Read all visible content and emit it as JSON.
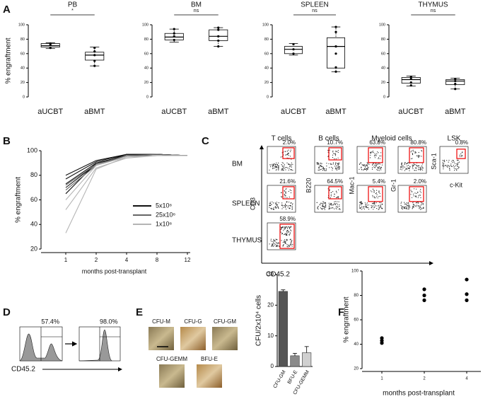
{
  "panel_labels": [
    "A",
    "B",
    "C",
    "D",
    "E",
    "F"
  ],
  "chart_data": [
    {
      "type": "box",
      "title": "PB",
      "annotation": "*",
      "ylabel": "% engraftment",
      "categories": [
        "aUCBT",
        "aBMT"
      ],
      "ylim": [
        0,
        100
      ],
      "yticks": [
        0,
        20,
        40,
        60,
        80,
        100
      ],
      "boxes": [
        {
          "min": 67,
          "q1": 69,
          "median": 71,
          "q3": 74,
          "max": 75,
          "points": [
            68,
            72,
            74
          ]
        },
        {
          "min": 43,
          "q1": 51,
          "median": 58,
          "q3": 62,
          "max": 69,
          "points": [
            43,
            50,
            58,
            63,
            68
          ]
        }
      ]
    },
    {
      "type": "box",
      "title": "BM",
      "annotation": "ns",
      "categories": [
        "aUCBT",
        "aBMT"
      ],
      "ylim": [
        0,
        100
      ],
      "yticks": [
        0,
        20,
        40,
        60,
        80,
        100
      ],
      "boxes": [
        {
          "min": 76,
          "q1": 79,
          "median": 83,
          "q3": 88,
          "max": 94,
          "points": [
            79,
            84,
            88,
            94
          ]
        },
        {
          "min": 70,
          "q1": 78,
          "median": 84,
          "q3": 93,
          "max": 96,
          "points": [
            70,
            78,
            84,
            93,
            96
          ]
        }
      ]
    },
    {
      "type": "box",
      "title": "SPLEEN",
      "annotation": "ns",
      "categories": [
        "aUCBT",
        "aBMT"
      ],
      "ylim": [
        0,
        100
      ],
      "yticks": [
        0,
        20,
        40,
        60,
        80,
        100
      ],
      "boxes": [
        {
          "min": 58,
          "q1": 60,
          "median": 66,
          "q3": 70,
          "max": 74,
          "points": [
            60,
            66,
            73
          ]
        },
        {
          "min": 35,
          "q1": 40,
          "median": 70,
          "q3": 82,
          "max": 97,
          "points": [
            35,
            41,
            60,
            70,
            90,
            97
          ]
        }
      ]
    },
    {
      "type": "box",
      "title": "THYMUS",
      "annotation": "ns",
      "categories": [
        "aUCBT",
        "aBMT"
      ],
      "ylim": [
        0,
        100
      ],
      "yticks": [
        0,
        20,
        40,
        60,
        80,
        100
      ],
      "boxes": [
        {
          "min": 15,
          "q1": 19,
          "median": 24,
          "q3": 27,
          "max": 29,
          "points": [
            16,
            20,
            25,
            28
          ]
        },
        {
          "min": 11,
          "q1": 17,
          "median": 22,
          "q3": 24,
          "max": 26,
          "points": [
            11,
            18,
            22,
            25
          ]
        }
      ]
    },
    {
      "type": "line",
      "xlabel": "months post-transplant",
      "ylabel": "% engraftment",
      "categories": [
        "1",
        "2",
        "4",
        "8",
        "12"
      ],
      "ylim": [
        20,
        100
      ],
      "yticks": [
        20,
        40,
        60,
        80,
        100
      ],
      "series": [
        {
          "name": "5x10⁶",
          "color": "#111111",
          "lines": [
            [
              80,
              92,
              97,
              97,
              96
            ],
            [
              77,
              91,
              97,
              97,
              96
            ],
            [
              73,
              90,
              96,
              97,
              96
            ],
            [
              70,
              89,
              97,
              97,
              96
            ],
            [
              65,
              90,
              96,
              97,
              96
            ]
          ]
        },
        {
          "name": "25x10⁶",
          "color": "#666666",
          "lines": [
            [
              72,
              89,
              96,
              97,
              96
            ],
            [
              68,
              88,
              96,
              96,
              96
            ]
          ]
        },
        {
          "name": "1x10⁶",
          "color": "#b5b5b5",
          "lines": [
            [
              60,
              88,
              95,
              96,
              96
            ],
            [
              52,
              86,
              94,
              96,
              96
            ],
            [
              33,
              85,
              95,
              96,
              96
            ]
          ]
        }
      ]
    },
    {
      "type": "bar",
      "ylabel": "CFU/2x10⁴ cells",
      "categories": [
        "CFU-GM",
        "BFU-E",
        "CFU-GEMM"
      ],
      "values": [
        24.5,
        3.5,
        4.5
      ],
      "errors": [
        0.5,
        0.8,
        2
      ],
      "colors": [
        "#555555",
        "#8a8a8a",
        "#d0d0d0"
      ],
      "ylim": [
        0,
        30
      ],
      "yticks": [
        0,
        10,
        20,
        30
      ]
    },
    {
      "type": "scatter",
      "xlabel": "months post-transplant",
      "ylabel": "% engraftment",
      "categories": [
        "1",
        "2",
        "4"
      ],
      "values": [
        [
          45,
          43,
          41
        ],
        [
          85,
          80,
          76
        ],
        [
          93,
          81,
          76
        ]
      ],
      "color": "#000000",
      "ylim": [
        20,
        100
      ],
      "yticks": [
        20,
        40,
        60,
        80,
        100
      ]
    }
  ],
  "flow_c": {
    "columns": [
      "T cells",
      "B cells",
      "Myeloid cells",
      "LSK"
    ],
    "rows": [
      "BM",
      "SPLEEN",
      "THYMUS"
    ],
    "axis_labels": [
      "CD3",
      "B220",
      "Mac-1",
      "Gr-1",
      "Sca-1",
      "c-Kit"
    ],
    "x_label": "CD45.2",
    "gates": [
      [
        "2.0%",
        "10.7%",
        "63.8%",
        "80.8%",
        "0.8%"
      ],
      [
        "21.6%",
        "64.5%",
        "5.4%",
        "2.0%"
      ],
      [
        "58.9%"
      ]
    ]
  },
  "flow_d": {
    "gates": [
      "57.4%",
      "98.0%"
    ],
    "x_label": "CD45.2"
  },
  "colonies": [
    "CFU-M",
    "CFU-G",
    "CFU-GM",
    "CFU-GEMM",
    "BFU-E"
  ]
}
